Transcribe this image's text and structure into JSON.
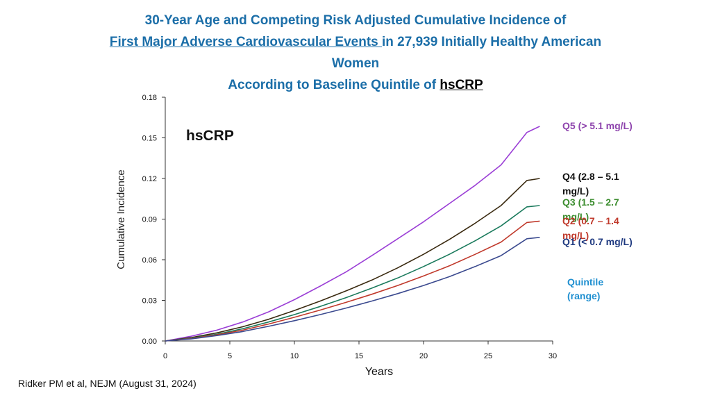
{
  "title": {
    "line1": "30-Year Age and Competing Risk Adjusted Cumulative Incidence of",
    "line2_underlined": "First Major Adverse Cardiovascular Events ",
    "line2_rest": "in 27,939 Initially Healthy American",
    "line3": "Women",
    "line4_prefix": "According to Baseline Quintile of ",
    "line4_term": "hsCRP"
  },
  "citation": "Ridker PM et al, NEJM (August 31, 2024)",
  "chart_data": {
    "type": "line",
    "title": "",
    "xlabel": "Years",
    "ylabel": "Cumulative Incidence",
    "xlim": [
      0,
      30
    ],
    "ylim": [
      0,
      0.18
    ],
    "x_ticks": [
      "0",
      "5",
      "10",
      "15",
      "20",
      "25",
      "30"
    ],
    "y_ticks": [
      "0.00",
      "0.03",
      "0.06",
      "0.09",
      "0.12",
      "0.15",
      "0.18"
    ],
    "grid": false,
    "annotation": "hsCRP",
    "legend_title": "Quintile (range)",
    "legend_placement": "right",
    "x": [
      0,
      2,
      4,
      6,
      8,
      10,
      12,
      14,
      16,
      18,
      20,
      22,
      24,
      26,
      28,
      29
    ],
    "series": [
      {
        "name": "Q5 (> 5.1 mg/L)",
        "color": "#9b3fd6",
        "values": [
          0,
          0.0035,
          0.008,
          0.014,
          0.0215,
          0.0305,
          0.0405,
          0.051,
          0.063,
          0.0755,
          0.088,
          0.1015,
          0.115,
          0.13,
          0.154,
          0.1585
        ]
      },
      {
        "name": "Q4 (2.8 – 5.1 mg/L)",
        "color": "#3a2a10",
        "values": [
          0,
          0.0025,
          0.006,
          0.0105,
          0.016,
          0.0225,
          0.0295,
          0.037,
          0.045,
          0.054,
          0.064,
          0.075,
          0.087,
          0.1,
          0.1185,
          0.12
        ]
      },
      {
        "name": "Q3 (1.5 – 2.7 mg/L)",
        "color": "#1a7a5c",
        "values": [
          0,
          0.002,
          0.005,
          0.009,
          0.014,
          0.0195,
          0.0255,
          0.032,
          0.039,
          0.0465,
          0.055,
          0.064,
          0.074,
          0.085,
          0.099,
          0.1
        ]
      },
      {
        "name": "Q2 (0.7 – 1.4 mg/L)",
        "color": "#c0392b",
        "values": [
          0,
          0.0018,
          0.0045,
          0.008,
          0.0125,
          0.0175,
          0.0228,
          0.0285,
          0.0345,
          0.041,
          0.048,
          0.0555,
          0.064,
          0.073,
          0.0875,
          0.0885
        ]
      },
      {
        "name": "Q1 (< 0.7 mg/L)",
        "color": "#3b4a8f",
        "values": [
          0,
          0.0015,
          0.004,
          0.007,
          0.0108,
          0.015,
          0.0195,
          0.0243,
          0.0295,
          0.035,
          0.041,
          0.0475,
          0.055,
          0.063,
          0.0755,
          0.0765
        ]
      }
    ]
  },
  "legend": {
    "q5_color": "#8e44ad",
    "q4_color": "#111111",
    "q3_color": "#3c8d2f",
    "q2_color": "#c0392b",
    "q1_color": "#1f3a80",
    "q5": "Q5  (> 5.1 mg/L)",
    "q4": "Q4  (2.8 – 5.1 mg/L)",
    "q3": "Q3  (1.5 – 2.7 mg/L)",
    "q2": "Q2  (0.7 – 1.4 mg/L)",
    "q1": "Q1  (< 0.7 mg/L)",
    "title": "Quintile (range)"
  },
  "inplot_label": "hsCRP"
}
